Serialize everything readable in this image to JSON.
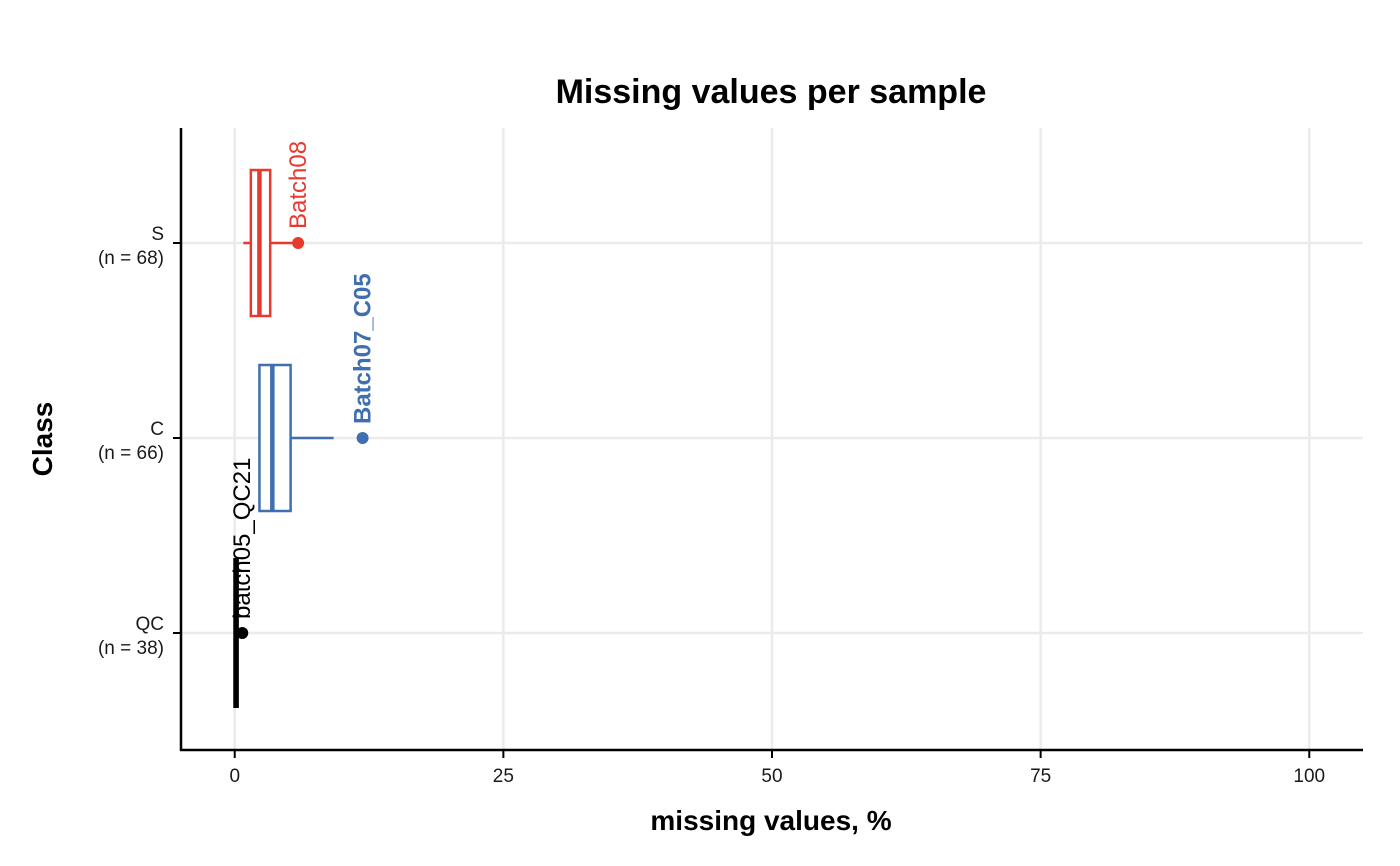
{
  "chart_data": {
    "type": "boxplot",
    "orientation": "horizontal",
    "title": "Missing values per sample",
    "xlabel": "missing values, %",
    "ylabel": "Class",
    "xlim": [
      -5,
      105
    ],
    "xticks": [
      0,
      25,
      50,
      75,
      100
    ],
    "xtick_labels": [
      "0",
      "25",
      "50",
      "75",
      "100"
    ],
    "grid": true,
    "legend": "none",
    "categories": [
      {
        "name": "QC",
        "label_line1": "QC",
        "label_line2": "(n = 38)",
        "color": "#000000",
        "bold_outlier": false,
        "whisker_low": 0.0,
        "q1": 0.05,
        "median": 0.1,
        "q3": 0.2,
        "whisker_high": 0.3,
        "outliers": [
          {
            "x": 0.7,
            "label": "batch05_QC21"
          }
        ]
      },
      {
        "name": "C",
        "label_line1": "C",
        "label_line2": "(n = 66)",
        "color": "#3F6FB0",
        "bold_outlier": true,
        "whisker_low": 2.3,
        "q1": 2.3,
        "median": 3.5,
        "q3": 5.2,
        "whisker_high": 9.2,
        "outliers": [
          {
            "x": 11.9,
            "label": "Batch07_C05"
          }
        ]
      },
      {
        "name": "S",
        "label_line1": "S",
        "label_line2": "(n = 68)",
        "color": "#E8392F",
        "bold_outlier": false,
        "whisker_low": 0.8,
        "q1": 1.5,
        "median": 2.3,
        "q3": 3.3,
        "whisker_high": 5.8,
        "outliers": [
          {
            "x": 5.9,
            "label": "Batch08"
          }
        ]
      }
    ]
  }
}
